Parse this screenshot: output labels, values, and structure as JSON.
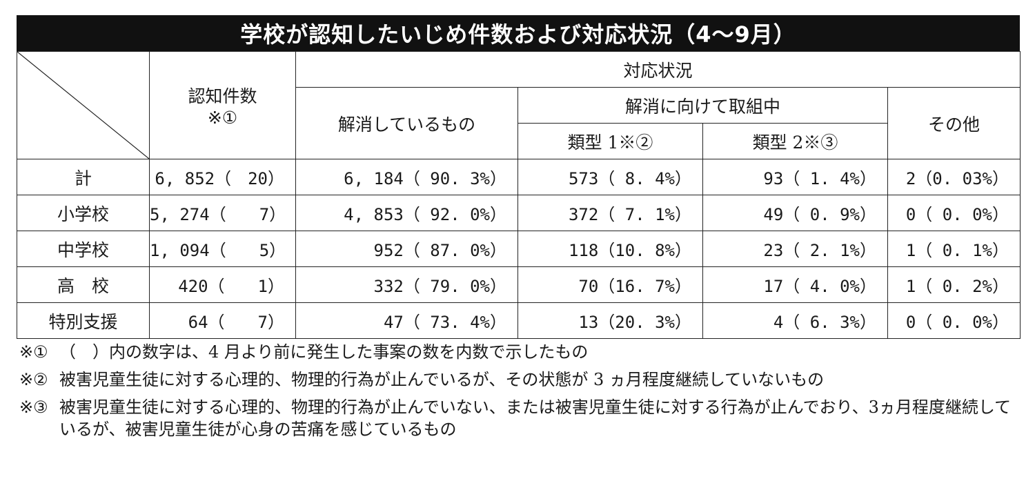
{
  "title": "学校が認知したいじめ件数および対応状況（4〜9月）",
  "header": {
    "recognized": "認知件数",
    "recognized_note": "※①",
    "response": "対応状況",
    "resolved": "解消しているもの",
    "in_progress": "解消に向けて取組中",
    "type1": "類型 1※②",
    "type2": "類型 2※③",
    "other": "その他"
  },
  "rows": [
    {
      "label": "計",
      "recognized": "6, 852（　20）",
      "resolved": "6, 184（ 90. 3%）",
      "type1": "573（ 8. 4%）",
      "type2": "93（ 1. 4%）",
      "other": "2（0. 03%）"
    },
    {
      "label": "小学校",
      "recognized": "5, 274（　　7）",
      "resolved": "4, 853（ 92. 0%）",
      "type1": "372（ 7. 1%）",
      "type2": "49（ 0. 9%）",
      "other": "0（ 0. 0%）"
    },
    {
      "label": "中学校",
      "recognized": "1, 094（　　5）",
      "resolved": "952（ 87. 0%）",
      "type1": "118（10. 8%）",
      "type2": "23（ 2. 1%）",
      "other": "1（ 0. 1%）"
    },
    {
      "label": "高　校",
      "recognized": "420（　　1）",
      "resolved": "332（ 79. 0%）",
      "type1": "70（16. 7%）",
      "type2": "17（ 4. 0%）",
      "other": "1（ 0. 2%）"
    },
    {
      "label": "特別支援",
      "recognized": "64（　　7）",
      "resolved": "47（ 73. 4%）",
      "type1": "13（20. 3%）",
      "type2": "4（ 6. 3%）",
      "other": "0（ 0. 0%）"
    }
  ],
  "notes": [
    {
      "mark": "※①",
      "text": "（　）内の数字は、4 月より前に発生した事案の数を内数で示したもの"
    },
    {
      "mark": "※②",
      "text": "被害児童生徒に対する心理的、物理的行為が止んでいるが、その状態が 3 ヵ月程度継続していないもの"
    },
    {
      "mark": "※③",
      "text": "被害児童生徒に対する心理的、物理的行為が止んでいない、または被害児童生徒に対する行為が止んでおり、3ヵ月程度継続しているが、被害児童生徒が心身の苦痛を感じているもの"
    }
  ]
}
